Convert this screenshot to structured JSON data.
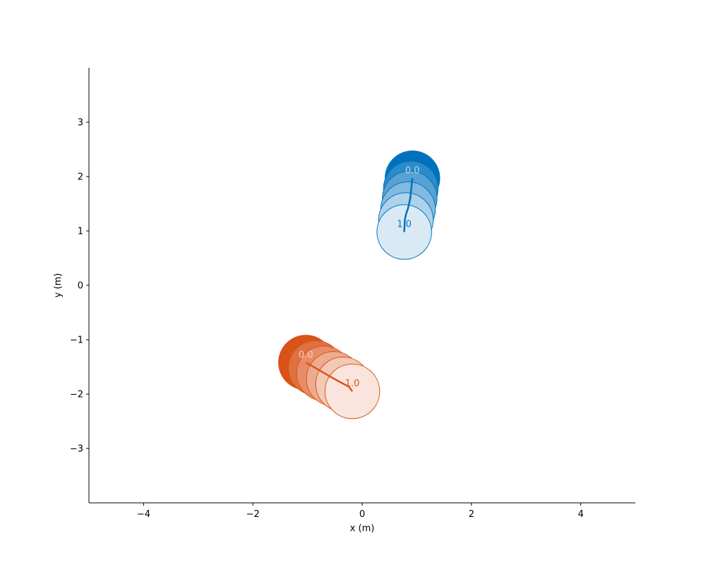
{
  "chart_data": {
    "type": "scatter",
    "title": "",
    "xlabel": "x (m)",
    "ylabel": "y (m)",
    "xlim": [
      -5,
      5
    ],
    "ylim": [
      -4,
      4
    ],
    "xticks": [
      -4,
      -2,
      0,
      2,
      4
    ],
    "yticks": [
      -3,
      -2,
      -1,
      0,
      1,
      2,
      3
    ],
    "xtick_labels": [
      "−4",
      "−2",
      "0",
      "2",
      "4"
    ],
    "ytick_labels": [
      "−3",
      "−2",
      "−1",
      "0",
      "1",
      "2",
      "3"
    ],
    "grid": false,
    "circle_radius": 0.5,
    "series": [
      {
        "color": "#0072bd",
        "trajectory": [
          {
            "t": 0.0,
            "x": 0.92,
            "y": 1.97
          },
          {
            "t": 0.2,
            "x": 0.89,
            "y": 1.78
          },
          {
            "t": 0.4,
            "x": 0.87,
            "y": 1.6
          },
          {
            "t": 0.6,
            "x": 0.84,
            "y": 1.4
          },
          {
            "t": 0.8,
            "x": 0.8,
            "y": 1.2
          },
          {
            "t": 1.0,
            "x": 0.77,
            "y": 0.98
          }
        ],
        "path": [
          [
            0.92,
            1.97
          ],
          [
            0.9,
            1.8
          ],
          [
            0.88,
            1.6
          ],
          [
            0.84,
            1.42
          ],
          [
            0.8,
            1.3
          ],
          [
            0.78,
            1.2
          ],
          [
            0.77,
            0.98
          ]
        ],
        "start_label": "0.0",
        "end_label": "1.0"
      },
      {
        "color": "#d95319",
        "trajectory": [
          {
            "t": 0.0,
            "x": -1.03,
            "y": -1.42
          },
          {
            "t": 0.2,
            "x": -0.85,
            "y": -1.52
          },
          {
            "t": 0.4,
            "x": -0.7,
            "y": -1.62
          },
          {
            "t": 0.6,
            "x": -0.52,
            "y": -1.72
          },
          {
            "t": 0.8,
            "x": -0.35,
            "y": -1.82
          },
          {
            "t": 1.0,
            "x": -0.18,
            "y": -1.95
          }
        ],
        "path": [
          [
            -1.03,
            -1.42
          ],
          [
            -0.8,
            -1.55
          ],
          [
            -0.6,
            -1.67
          ],
          [
            -0.4,
            -1.78
          ],
          [
            -0.25,
            -1.86
          ],
          [
            -0.18,
            -1.95
          ]
        ],
        "start_label": "0.0",
        "end_label": "1.0"
      }
    ]
  }
}
